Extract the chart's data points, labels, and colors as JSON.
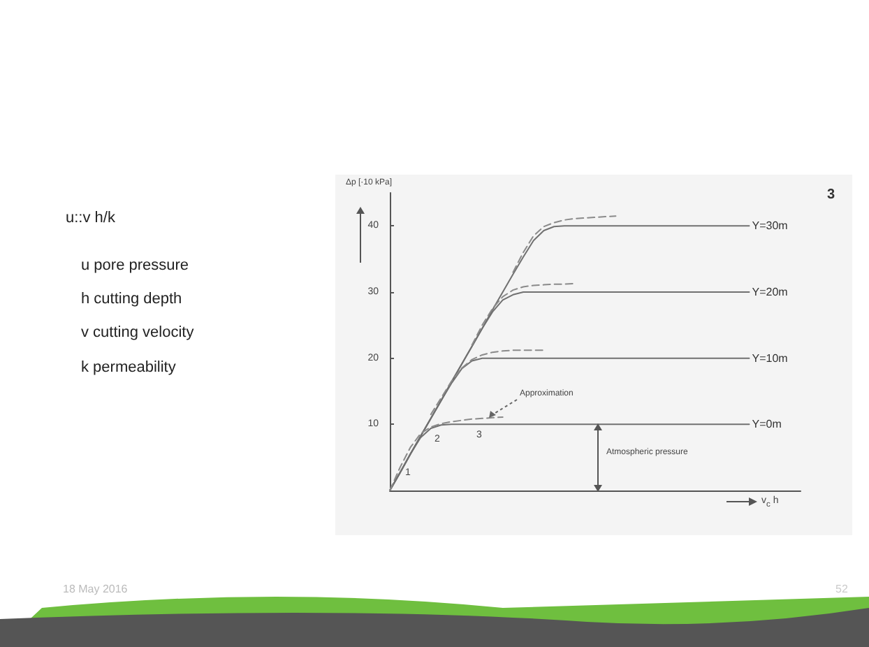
{
  "chart_data": {
    "type": "line",
    "ylabel": "Δp [·10 kPa]",
    "xlabel": "v$_{c}$ h",
    "tick_labels": "y",
    "ylim": [
      0,
      45
    ],
    "yticks": [
      10,
      20,
      30,
      40
    ],
    "categories": [
      null,
      null,
      null,
      null,
      null,
      null,
      null,
      null,
      null,
      null,
      null,
      null,
      null,
      null,
      null,
      null,
      null,
      null,
      null,
      null,
      null,
      null,
      null,
      null,
      null,
      null,
      null,
      null,
      null,
      null,
      null,
      null,
      null,
      null,
      null,
      null,
      null,
      null,
      null,
      null,
      null
    ],
    "series": [
      {
        "name": "Y=30m",
        "color": "#707070",
        "line_style": "solid",
        "values": [
          0,
          2.7,
          5.5,
          8.2,
          10.9,
          13.6,
          16.4,
          19.1,
          21.8,
          24.5,
          27.3,
          30,
          32.7,
          35.3,
          37.8,
          39.3,
          39.9,
          40,
          40,
          40,
          40,
          40,
          40,
          40,
          40,
          40,
          40,
          40,
          40,
          40,
          40,
          40,
          40,
          40,
          40,
          40,
          null,
          null,
          null,
          null,
          null
        ]
      },
      {
        "name": "Y=20m",
        "color": "#707070",
        "line_style": "solid",
        "values": [
          0,
          2.7,
          5.5,
          8.2,
          10.9,
          13.6,
          16.4,
          19.1,
          21.8,
          24.5,
          27.0,
          28.8,
          29.6,
          30,
          30,
          30,
          30,
          30,
          30,
          30,
          30,
          30,
          30,
          30,
          30,
          30,
          30,
          30,
          30,
          30,
          30,
          30,
          30,
          30,
          30,
          30,
          null,
          null,
          null,
          null,
          null
        ]
      },
      {
        "name": "Y=10m",
        "color": "#707070",
        "line_style": "solid",
        "values": [
          0,
          2.7,
          5.5,
          8.2,
          10.9,
          13.6,
          16.2,
          18.4,
          19.6,
          20,
          20,
          20,
          20,
          20,
          20,
          20,
          20,
          20,
          20,
          20,
          20,
          20,
          20,
          20,
          20,
          20,
          20,
          20,
          20,
          20,
          20,
          20,
          20,
          20,
          20,
          20,
          null,
          null,
          null,
          null,
          null
        ]
      },
      {
        "name": "Y=0m",
        "color": "#707070",
        "line_style": "solid",
        "values": [
          0,
          2.7,
          5.5,
          8.0,
          9.4,
          9.9,
          10,
          10,
          10,
          10,
          10,
          10,
          10,
          10,
          10,
          10,
          10,
          10,
          10,
          10,
          10,
          10,
          10,
          10,
          10,
          10,
          10,
          10,
          10,
          10,
          10,
          10,
          10,
          10,
          10,
          10,
          null,
          null,
          null,
          null,
          null
        ]
      },
      {
        "color": "#8a8a8a",
        "line_style": "dashed",
        "values": [
          0,
          3.5,
          6.5,
          8.6,
          9.6,
          10.1,
          10.4,
          10.6,
          10.8,
          10.9,
          11.0,
          11.1,
          null,
          null,
          null,
          null,
          null,
          null,
          null,
          null,
          null,
          null,
          null,
          null,
          null,
          null,
          null,
          null,
          null,
          null,
          null,
          null,
          null,
          null,
          null,
          null,
          null,
          null,
          null,
          null,
          null
        ]
      },
      {
        "color": "#8a8a8a",
        "line_style": "dashed",
        "values": [
          null,
          null,
          null,
          null,
          11.5,
          14.0,
          16.5,
          18.5,
          19.8,
          20.5,
          20.9,
          21.1,
          21.2,
          21.2,
          21.2,
          21.2,
          null,
          null,
          null,
          null,
          null,
          null,
          null,
          null,
          null,
          null,
          null,
          null,
          null,
          null,
          null,
          null,
          null,
          null,
          null,
          null,
          null,
          null,
          null,
          null,
          null
        ]
      },
      {
        "color": "#8a8a8a",
        "line_style": "dashed",
        "values": [
          null,
          null,
          null,
          null,
          null,
          null,
          null,
          null,
          22,
          25,
          27.5,
          29.3,
          30.3,
          30.8,
          31,
          31.1,
          31.2,
          31.2,
          31.3,
          null,
          null,
          null,
          null,
          null,
          null,
          null,
          null,
          null,
          null,
          null,
          null,
          null,
          null,
          null,
          null,
          null,
          null,
          null,
          null,
          null,
          null
        ]
      },
      {
        "color": "#8a8a8a",
        "line_style": "dashed",
        "values": [
          null,
          null,
          null,
          null,
          null,
          null,
          null,
          null,
          null,
          null,
          null,
          null,
          33,
          36,
          38.5,
          39.9,
          40.5,
          40.9,
          41.1,
          41.2,
          41.3,
          41.4,
          41.5,
          null,
          null,
          null,
          null,
          null,
          null,
          null,
          null,
          null,
          null,
          null,
          null,
          null,
          null,
          null,
          null,
          null,
          null
        ]
      }
    ],
    "annotations": [
      "3",
      "u::v h/k",
      "u pore pressure",
      "h cutting depth",
      "v cutting velocity",
      "k permeability",
      "Approximation",
      "1",
      "2",
      "3",
      "Atmospheric pressure",
      "18 May 2016",
      "52"
    ]
  }
}
